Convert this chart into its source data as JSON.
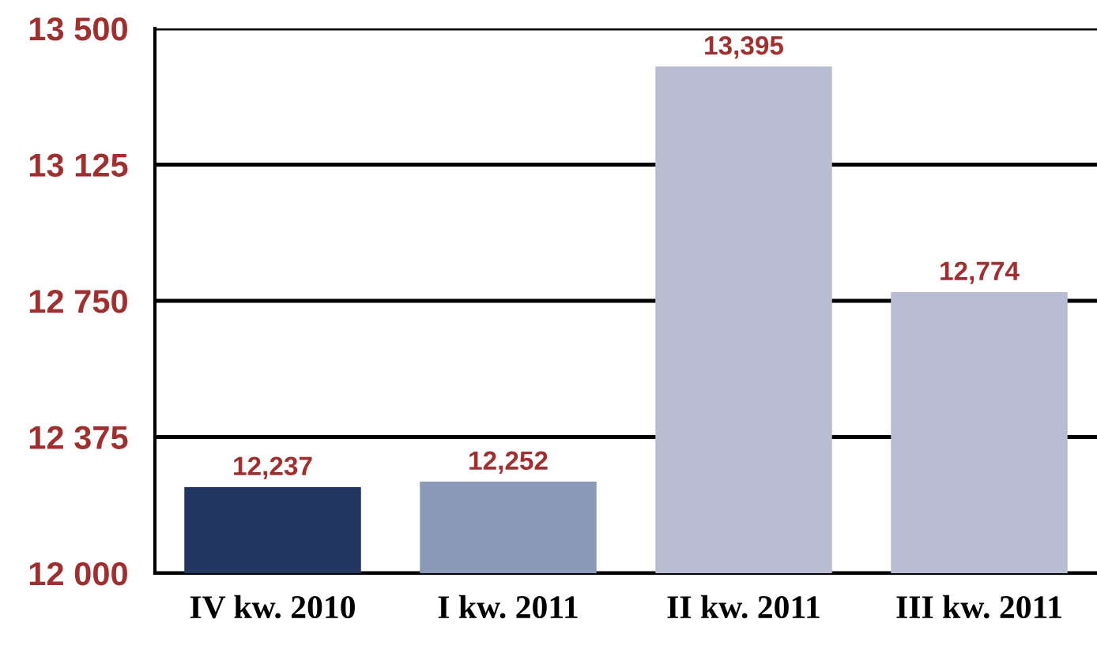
{
  "chart_data": {
    "type": "bar",
    "categories": [
      "IV kw. 2010",
      "I kw. 2011",
      "II kw. 2011",
      "III kw. 2011"
    ],
    "values": [
      12237,
      12252,
      13395,
      12774
    ],
    "colors": [
      "#22375f",
      "#8c9aba",
      "#b9bdd4",
      "#b9bdd4"
    ],
    "value_labels": [
      "12,237",
      "12,252",
      "13,395",
      "12,774"
    ],
    "ylim": [
      12000,
      13500
    ],
    "yticks": [
      {
        "value": 12000,
        "label": "12 000"
      },
      {
        "value": 12375,
        "label": "12 375"
      },
      {
        "value": 12750,
        "label": "12 750"
      },
      {
        "value": 13125,
        "label": "13 125"
      },
      {
        "value": 13500,
        "label": "13 500"
      }
    ],
    "grid": "y"
  }
}
